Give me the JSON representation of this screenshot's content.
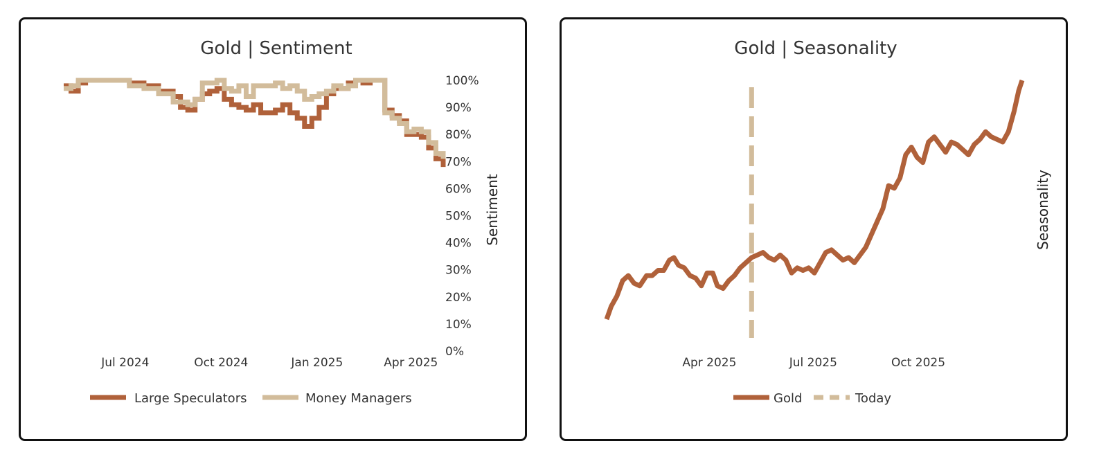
{
  "colors": {
    "gold": "#b0613a",
    "tan": "#d2bc9b"
  },
  "chart_data": [
    {
      "type": "line",
      "title": "Gold | Sentiment",
      "ylabel": "Sentiment",
      "xlabel": "",
      "x_ticks": [
        "Jul 2024",
        "Oct 2024",
        "Jan 2025",
        "Apr 2025"
      ],
      "y_ticks": [
        "0%",
        "10%",
        "20%",
        "30%",
        "40%",
        "50%",
        "60%",
        "70%",
        "80%",
        "90%",
        "100%"
      ],
      "ylim": [
        0,
        100
      ],
      "xlim": [
        "2024-05-03",
        "2025-05-02"
      ],
      "grid": false,
      "legend_position": "bottom",
      "step": true,
      "series": [
        {
          "name": "Large Speculators",
          "color": "#b0613a",
          "points": [
            [
              "2024-05-03",
              98
            ],
            [
              "2024-05-10",
              96
            ],
            [
              "2024-05-17",
              99
            ],
            [
              "2024-05-24",
              100
            ],
            [
              "2024-06-07",
              100
            ],
            [
              "2024-06-21",
              100
            ],
            [
              "2024-07-05",
              99
            ],
            [
              "2024-07-19",
              98
            ],
            [
              "2024-08-02",
              96
            ],
            [
              "2024-08-16",
              94
            ],
            [
              "2024-08-23",
              90
            ],
            [
              "2024-08-30",
              89
            ],
            [
              "2024-09-06",
              93
            ],
            [
              "2024-09-13",
              95
            ],
            [
              "2024-09-20",
              96
            ],
            [
              "2024-09-27",
              97
            ],
            [
              "2024-10-04",
              93
            ],
            [
              "2024-10-11",
              91
            ],
            [
              "2024-10-18",
              90
            ],
            [
              "2024-10-25",
              89
            ],
            [
              "2024-11-01",
              91
            ],
            [
              "2024-11-08",
              88
            ],
            [
              "2024-11-15",
              88
            ],
            [
              "2024-11-22",
              89
            ],
            [
              "2024-11-29",
              91
            ],
            [
              "2024-12-06",
              88
            ],
            [
              "2024-12-13",
              86
            ],
            [
              "2024-12-20",
              83
            ],
            [
              "2024-12-27",
              86
            ],
            [
              "2025-01-03",
              90
            ],
            [
              "2025-01-10",
              95
            ],
            [
              "2025-01-17",
              97
            ],
            [
              "2025-01-24",
              97
            ],
            [
              "2025-01-31",
              99
            ],
            [
              "2025-02-07",
              100
            ],
            [
              "2025-02-14",
              99
            ],
            [
              "2025-02-21",
              100
            ],
            [
              "2025-02-28",
              100
            ],
            [
              "2025-03-07",
              89
            ],
            [
              "2025-03-14",
              87
            ],
            [
              "2025-03-21",
              85
            ],
            [
              "2025-03-28",
              80
            ],
            [
              "2025-04-04",
              80
            ],
            [
              "2025-04-11",
              79
            ],
            [
              "2025-04-18",
              75
            ],
            [
              "2025-04-25",
              71
            ],
            [
              "2025-05-02",
              68
            ]
          ]
        },
        {
          "name": "Money Managers",
          "color": "#d2bc9b",
          "points": [
            [
              "2024-05-03",
              97
            ],
            [
              "2024-05-10",
              98
            ],
            [
              "2024-05-17",
              100
            ],
            [
              "2024-05-24",
              100
            ],
            [
              "2024-06-07",
              100
            ],
            [
              "2024-06-21",
              100
            ],
            [
              "2024-07-05",
              98
            ],
            [
              "2024-07-19",
              97
            ],
            [
              "2024-08-02",
              95
            ],
            [
              "2024-08-16",
              92
            ],
            [
              "2024-08-23",
              92
            ],
            [
              "2024-08-30",
              91
            ],
            [
              "2024-09-06",
              93
            ],
            [
              "2024-09-13",
              99
            ],
            [
              "2024-09-20",
              99
            ],
            [
              "2024-09-27",
              100
            ],
            [
              "2024-10-04",
              97
            ],
            [
              "2024-10-11",
              96
            ],
            [
              "2024-10-18",
              98
            ],
            [
              "2024-10-25",
              94
            ],
            [
              "2024-11-01",
              98
            ],
            [
              "2024-11-08",
              98
            ],
            [
              "2024-11-15",
              98
            ],
            [
              "2024-11-22",
              99
            ],
            [
              "2024-11-29",
              97
            ],
            [
              "2024-12-06",
              98
            ],
            [
              "2024-12-13",
              96
            ],
            [
              "2024-12-20",
              93
            ],
            [
              "2024-12-27",
              94
            ],
            [
              "2025-01-03",
              95
            ],
            [
              "2025-01-10",
              96
            ],
            [
              "2025-01-17",
              98
            ],
            [
              "2025-01-24",
              97
            ],
            [
              "2025-01-31",
              98
            ],
            [
              "2025-02-07",
              100
            ],
            [
              "2025-02-14",
              100
            ],
            [
              "2025-02-21",
              100
            ],
            [
              "2025-02-28",
              100
            ],
            [
              "2025-03-07",
              88
            ],
            [
              "2025-03-14",
              86
            ],
            [
              "2025-03-21",
              84
            ],
            [
              "2025-03-28",
              81
            ],
            [
              "2025-04-04",
              82
            ],
            [
              "2025-04-11",
              81
            ],
            [
              "2025-04-18",
              77
            ],
            [
              "2025-04-25",
              73
            ],
            [
              "2025-05-02",
              71
            ]
          ]
        }
      ]
    },
    {
      "type": "line",
      "title": "Gold | Seasonality",
      "ylabel": "Seasonality",
      "xlabel": "",
      "x_ticks": [
        "Apr 2025",
        "Jul 2025",
        "Oct 2025"
      ],
      "xlim": [
        "2025-01-01",
        "2025-12-31"
      ],
      "ylim": [
        0,
        100
      ],
      "grid": false,
      "legend_position": "bottom",
      "today": "2025-05-08",
      "series": [
        {
          "name": "Gold",
          "color": "#b0613a",
          "points": [
            [
              "2025-01-01",
              7
            ],
            [
              "2025-01-05",
              12
            ],
            [
              "2025-01-10",
              16
            ],
            [
              "2025-01-15",
              22
            ],
            [
              "2025-01-20",
              24
            ],
            [
              "2025-01-25",
              21
            ],
            [
              "2025-01-30",
              20
            ],
            [
              "2025-02-05",
              24
            ],
            [
              "2025-02-10",
              24
            ],
            [
              "2025-02-15",
              26
            ],
            [
              "2025-02-20",
              26
            ],
            [
              "2025-02-25",
              30
            ],
            [
              "2025-03-01",
              31
            ],
            [
              "2025-03-05",
              28
            ],
            [
              "2025-03-10",
              27
            ],
            [
              "2025-03-15",
              24
            ],
            [
              "2025-03-20",
              23
            ],
            [
              "2025-03-25",
              20
            ],
            [
              "2025-03-30",
              25
            ],
            [
              "2025-04-04",
              25
            ],
            [
              "2025-04-08",
              20
            ],
            [
              "2025-04-13",
              19
            ],
            [
              "2025-04-18",
              22
            ],
            [
              "2025-04-23",
              24
            ],
            [
              "2025-04-28",
              27
            ],
            [
              "2025-05-03",
              29
            ],
            [
              "2025-05-08",
              31
            ],
            [
              "2025-05-13",
              32
            ],
            [
              "2025-05-18",
              33
            ],
            [
              "2025-05-23",
              31
            ],
            [
              "2025-05-28",
              30
            ],
            [
              "2025-06-02",
              32
            ],
            [
              "2025-06-07",
              30
            ],
            [
              "2025-06-12",
              25
            ],
            [
              "2025-06-17",
              27
            ],
            [
              "2025-06-22",
              26
            ],
            [
              "2025-06-27",
              27
            ],
            [
              "2025-07-02",
              25
            ],
            [
              "2025-07-07",
              29
            ],
            [
              "2025-07-12",
              33
            ],
            [
              "2025-07-17",
              34
            ],
            [
              "2025-07-22",
              32
            ],
            [
              "2025-07-27",
              30
            ],
            [
              "2025-08-01",
              31
            ],
            [
              "2025-08-06",
              29
            ],
            [
              "2025-08-11",
              32
            ],
            [
              "2025-08-16",
              35
            ],
            [
              "2025-08-21",
              40
            ],
            [
              "2025-08-26",
              45
            ],
            [
              "2025-08-31",
              50
            ],
            [
              "2025-09-05",
              59
            ],
            [
              "2025-09-10",
              58
            ],
            [
              "2025-09-15",
              62
            ],
            [
              "2025-09-20",
              71
            ],
            [
              "2025-09-25",
              74
            ],
            [
              "2025-09-30",
              70
            ],
            [
              "2025-10-05",
              68
            ],
            [
              "2025-10-10",
              76
            ],
            [
              "2025-10-15",
              78
            ],
            [
              "2025-10-20",
              75
            ],
            [
              "2025-10-25",
              72
            ],
            [
              "2025-10-30",
              76
            ],
            [
              "2025-11-04",
              75
            ],
            [
              "2025-11-09",
              73
            ],
            [
              "2025-11-14",
              71
            ],
            [
              "2025-11-19",
              75
            ],
            [
              "2025-11-24",
              77
            ],
            [
              "2025-11-29",
              80
            ],
            [
              "2025-12-04",
              78
            ],
            [
              "2025-12-09",
              77
            ],
            [
              "2025-12-14",
              76
            ],
            [
              "2025-12-19",
              80
            ],
            [
              "2025-12-24",
              88
            ],
            [
              "2025-12-28",
              96
            ],
            [
              "2025-12-31",
              100
            ]
          ]
        },
        {
          "name": "Today",
          "color": "#d2bc9b"
        }
      ]
    }
  ]
}
